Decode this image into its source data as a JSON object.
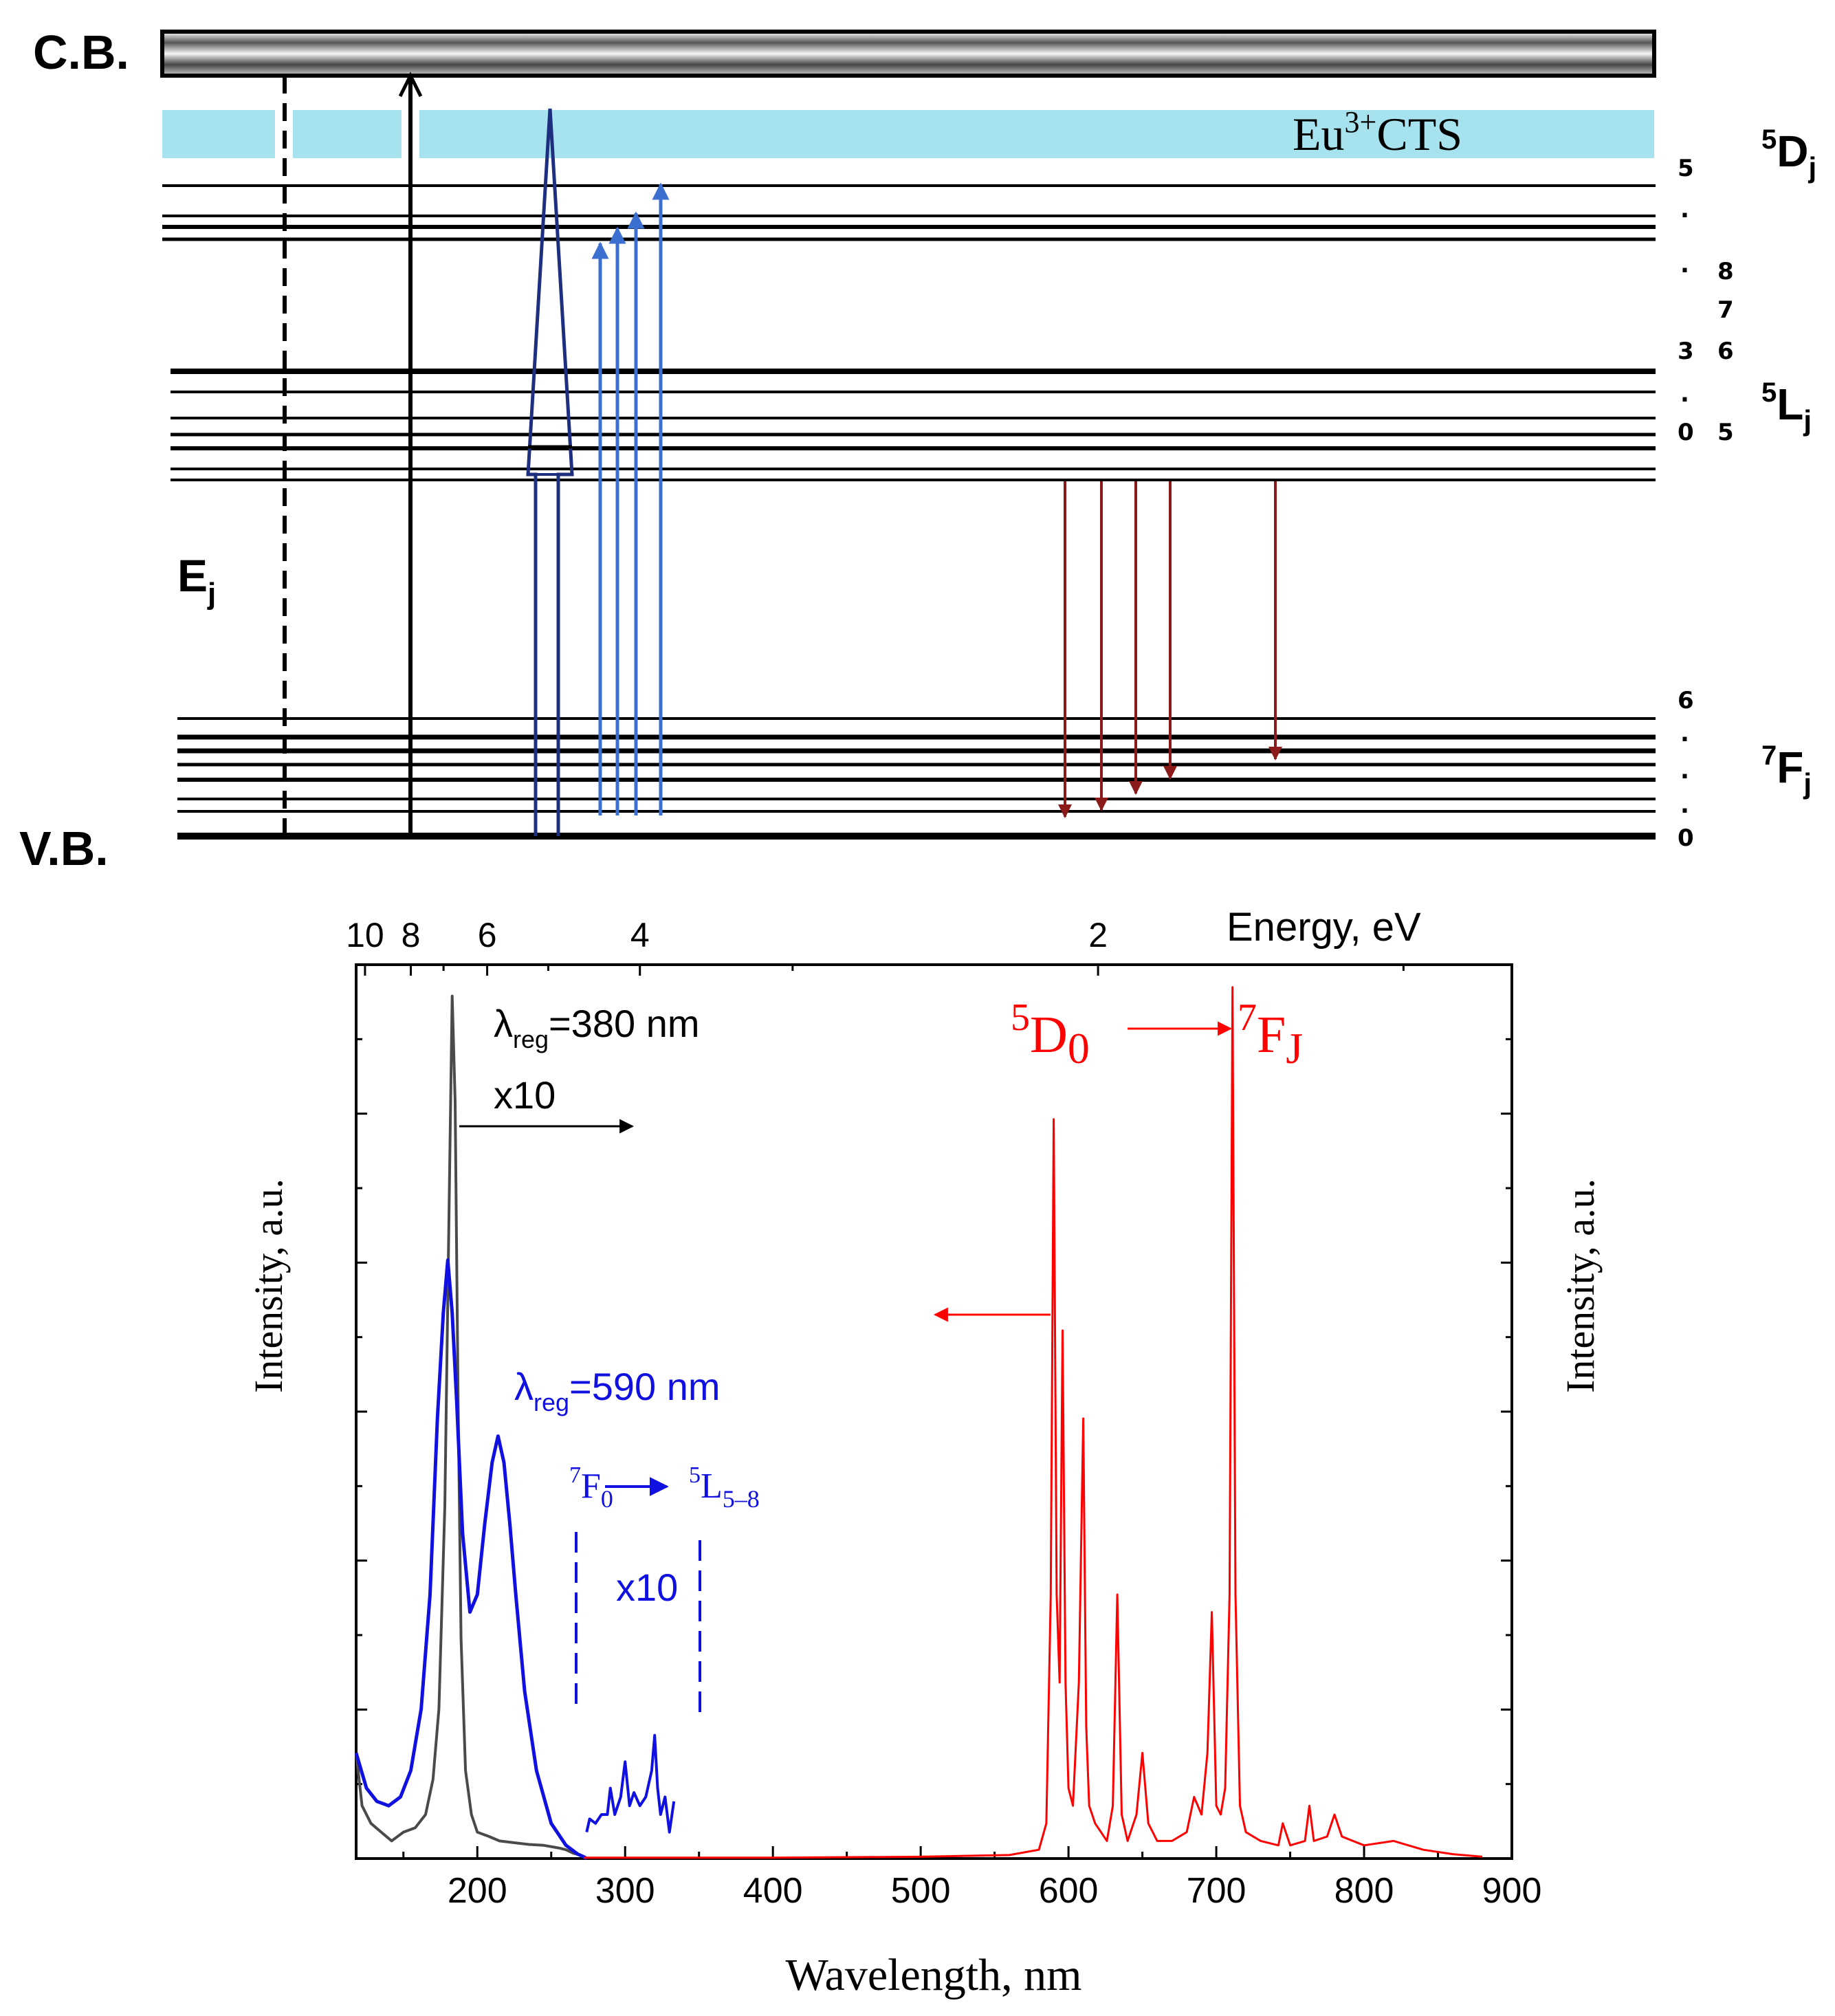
{
  "colors": {
    "black": "#000000",
    "gray": "#4a4a4a",
    "blue": "#1010e0",
    "red": "#ff0000",
    "cts_band": "#a6e3ee",
    "arrow_blue": "#3b6fd0",
    "arrow_dark_blue": "#1f2f80",
    "arrow_red": "#8b1a1a"
  },
  "level_diagram": {
    "cb_label": "C.B.",
    "vb_label": "V.B.",
    "ej_label": "E",
    "ej_sub": "j",
    "cts_label": "Eu",
    "cts_sup": "3+",
    "cts_suffix": "CTS",
    "terms": [
      {
        "sup": "5",
        "main": "D",
        "sub": "j"
      },
      {
        "sup": "5",
        "main": "L",
        "sub": "j"
      },
      {
        "sup": "7",
        "main": "F",
        "sub": "j"
      }
    ],
    "d_indices": [
      "5",
      ".",
      "."
    ],
    "l_indices_left": [
      "3",
      ".",
      "0"
    ],
    "l_indices_right": [
      "8",
      "7",
      "6",
      "5"
    ],
    "f_indices": [
      "6",
      ".",
      ".",
      ".",
      "0"
    ]
  },
  "chart_data": {
    "type": "line",
    "xlabel": "Wavelength, nm",
    "ylabel_left": "Intensity,  a.u.",
    "ylabel_right": "Intensity,  a.u.",
    "xlim": [
      118,
      900
    ],
    "ylim": [
      0,
      1.0
    ],
    "x_ticks": [
      200,
      300,
      400,
      500,
      600,
      700,
      800,
      900
    ],
    "top_axis_label": "Energy, eV",
    "top_ticks": [
      "10",
      "8",
      "6",
      "4",
      "2"
    ],
    "top_tick_values_eV": [
      10,
      8,
      6,
      4,
      2
    ],
    "series": [
      {
        "name": "excitation λreg=380 nm x10 (gray)",
        "x": [
          118,
          122,
          128,
          135,
          142,
          150,
          158,
          165,
          170,
          174,
          178,
          181,
          183,
          185,
          187,
          189,
          192,
          196,
          200,
          208,
          215,
          225,
          235,
          245,
          255,
          260,
          265,
          270
        ],
        "y": [
          0.12,
          0.06,
          0.04,
          0.03,
          0.02,
          0.03,
          0.035,
          0.05,
          0.09,
          0.17,
          0.4,
          0.75,
          0.98,
          0.86,
          0.52,
          0.25,
          0.1,
          0.05,
          0.03,
          0.025,
          0.02,
          0.018,
          0.016,
          0.015,
          0.012,
          0.01,
          0.006,
          0.004
        ]
      },
      {
        "name": "excitation λreg=590 nm (blue)",
        "x": [
          118,
          125,
          132,
          140,
          148,
          155,
          162,
          168,
          173,
          177,
          180,
          183,
          186,
          190,
          195,
          200,
          205,
          210,
          214,
          218,
          222,
          226,
          232,
          240,
          250,
          260,
          268,
          272,
          274
        ],
        "y": [
          0.12,
          0.08,
          0.065,
          0.06,
          0.07,
          0.1,
          0.17,
          0.3,
          0.5,
          0.62,
          0.68,
          0.62,
          0.52,
          0.37,
          0.28,
          0.3,
          0.38,
          0.45,
          0.48,
          0.45,
          0.38,
          0.3,
          0.19,
          0.1,
          0.04,
          0.015,
          0.005,
          0.002,
          0.0
        ]
      },
      {
        "name": "7F0 -> 5L5-8 x10 (blue)",
        "x": [
          274,
          276,
          280,
          284,
          288,
          290,
          293,
          297,
          300,
          303,
          306,
          310,
          314,
          318,
          320,
          322,
          324,
          327,
          330,
          333
        ],
        "y": [
          0.03,
          0.045,
          0.04,
          0.05,
          0.05,
          0.08,
          0.05,
          0.07,
          0.11,
          0.06,
          0.075,
          0.06,
          0.07,
          0.1,
          0.14,
          0.08,
          0.05,
          0.07,
          0.03,
          0.065
        ]
      },
      {
        "name": "emission 5D0 -> 7FJ (red)",
        "x": [
          272,
          400,
          500,
          560,
          580,
          585,
          588,
          590,
          592,
          594,
          596,
          598,
          600,
          603,
          607,
          610,
          612,
          614,
          618,
          622,
          626,
          630,
          633,
          636,
          640,
          646,
          650,
          654,
          660,
          670,
          680,
          685,
          690,
          694,
          697,
          700,
          703,
          706,
          709,
          711,
          713,
          716,
          720,
          730,
          742,
          745,
          750,
          760,
          763,
          766,
          775,
          780,
          785,
          800,
          820,
          840,
          860,
          880
        ],
        "y": [
          0.001,
          0.001,
          0.002,
          0.004,
          0.01,
          0.04,
          0.3,
          0.84,
          0.3,
          0.2,
          0.6,
          0.2,
          0.08,
          0.06,
          0.2,
          0.5,
          0.15,
          0.06,
          0.04,
          0.03,
          0.02,
          0.06,
          0.3,
          0.05,
          0.02,
          0.05,
          0.12,
          0.04,
          0.02,
          0.02,
          0.03,
          0.07,
          0.05,
          0.12,
          0.28,
          0.06,
          0.05,
          0.08,
          0.3,
          0.99,
          0.3,
          0.06,
          0.03,
          0.02,
          0.015,
          0.04,
          0.015,
          0.02,
          0.06,
          0.02,
          0.025,
          0.05,
          0.025,
          0.015,
          0.02,
          0.01,
          0.005,
          0.002
        ]
      }
    ],
    "annotations": {
      "lambda_380_main": "λ",
      "lambda_380_sub": "reg",
      "lambda_380_suffix": "=380 nm",
      "x10_a": "x10",
      "lambda_590_main": "λ",
      "lambda_590_sub": "reg",
      "lambda_590_suffix": "=590 nm",
      "trans_blue_sup1": "7",
      "trans_blue_main1": "F",
      "trans_blue_sub1": "0",
      "trans_blue_sup2": "5",
      "trans_blue_main2": "L",
      "trans_blue_sub2": "5–8",
      "x10_b": "x10",
      "trans_red_sup1": "5",
      "trans_red_main1": "D",
      "trans_red_sub1": "0",
      "trans_red_sup2": "7",
      "trans_red_main2": "F",
      "trans_red_sub2": "J"
    }
  }
}
